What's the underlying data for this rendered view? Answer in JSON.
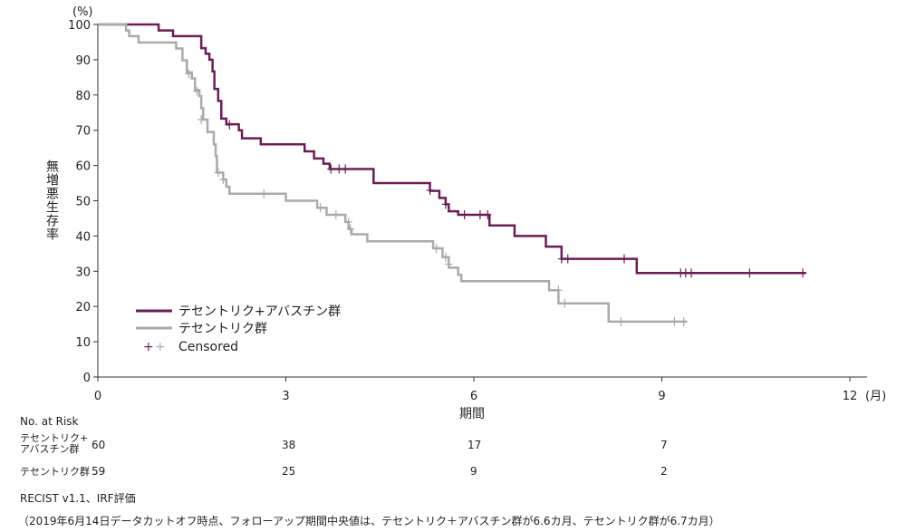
{
  "chart_data": {
    "type": "line",
    "subtype": "kaplan-meier",
    "ylabel": "無増悪生存率",
    "y_unit": "(%)",
    "xlabel": "期間",
    "x_unit": "(月)",
    "xlim": [
      0,
      12
    ],
    "ylim": [
      0,
      100
    ],
    "x_ticks": [
      0,
      3,
      6,
      9,
      12
    ],
    "y_ticks": [
      0,
      10,
      20,
      30,
      40,
      50,
      60,
      70,
      80,
      90,
      100
    ],
    "legend_position": "bottom-left",
    "colors": {
      "combo": "#6b1e55",
      "mono": "#aaaaaa"
    },
    "series": [
      {
        "name": "テセントリク+アバスチン群",
        "color": "#6b1e55",
        "steps": [
          [
            0,
            100
          ],
          [
            0.97,
            98.3
          ],
          [
            1.2,
            96.7
          ],
          [
            1.65,
            93.3
          ],
          [
            1.72,
            91.7
          ],
          [
            1.78,
            90
          ],
          [
            1.83,
            86.7
          ],
          [
            1.86,
            81.7
          ],
          [
            1.92,
            78.3
          ],
          [
            1.97,
            73.3
          ],
          [
            2.05,
            71.7
          ],
          [
            2.25,
            70
          ],
          [
            2.3,
            67.7
          ],
          [
            2.6,
            66
          ],
          [
            3.3,
            64
          ],
          [
            3.45,
            62
          ],
          [
            3.6,
            60.5
          ],
          [
            3.7,
            59
          ],
          [
            4.4,
            55
          ],
          [
            5.3,
            52.8
          ],
          [
            5.45,
            50.8
          ],
          [
            5.55,
            49
          ],
          [
            5.6,
            47
          ],
          [
            5.75,
            46
          ],
          [
            6.25,
            43
          ],
          [
            6.65,
            40
          ],
          [
            7.15,
            37
          ],
          [
            7.4,
            33.5
          ],
          [
            8.6,
            29.5
          ],
          [
            11.3,
            29.5
          ]
        ],
        "censored": [
          [
            2.1,
            71.5
          ],
          [
            3.72,
            59
          ],
          [
            3.85,
            59
          ],
          [
            3.95,
            59
          ],
          [
            5.3,
            53
          ],
          [
            5.55,
            49
          ],
          [
            5.85,
            46
          ],
          [
            6.1,
            46
          ],
          [
            6.22,
            46
          ],
          [
            7.4,
            33.5
          ],
          [
            7.5,
            33.5
          ],
          [
            8.4,
            33.5
          ],
          [
            9.3,
            29.5
          ],
          [
            9.38,
            29.5
          ],
          [
            9.47,
            29.5
          ],
          [
            10.4,
            29.5
          ],
          [
            11.25,
            29.5
          ]
        ]
      },
      {
        "name": "テセントリク群",
        "color": "#aaaaaa",
        "steps": [
          [
            0,
            100
          ],
          [
            0.45,
            98.3
          ],
          [
            0.5,
            96.7
          ],
          [
            0.65,
            94.9
          ],
          [
            1.25,
            93.2
          ],
          [
            1.35,
            89.8
          ],
          [
            1.42,
            86.4
          ],
          [
            1.5,
            84.7
          ],
          [
            1.55,
            81.4
          ],
          [
            1.62,
            79.7
          ],
          [
            1.65,
            76.3
          ],
          [
            1.68,
            73
          ],
          [
            1.75,
            69.5
          ],
          [
            1.85,
            66
          ],
          [
            1.88,
            62.7
          ],
          [
            1.9,
            58
          ],
          [
            2.0,
            56
          ],
          [
            2.05,
            54
          ],
          [
            2.1,
            52
          ],
          [
            3.0,
            50
          ],
          [
            3.5,
            48
          ],
          [
            3.65,
            46
          ],
          [
            3.95,
            44
          ],
          [
            4.0,
            42
          ],
          [
            4.05,
            40.5
          ],
          [
            4.3,
            38.5
          ],
          [
            5.35,
            36.5
          ],
          [
            5.5,
            34
          ],
          [
            5.6,
            31
          ],
          [
            5.75,
            29
          ],
          [
            5.8,
            27.2
          ],
          [
            7.2,
            24.6
          ],
          [
            7.35,
            20.9
          ],
          [
            8.15,
            15.7
          ],
          [
            9.4,
            15.7
          ]
        ],
        "censored": [
          [
            1.45,
            86
          ],
          [
            1.58,
            81
          ],
          [
            1.65,
            73
          ],
          [
            1.92,
            58
          ],
          [
            2.0,
            56
          ],
          [
            2.65,
            52
          ],
          [
            3.55,
            48
          ],
          [
            3.8,
            46
          ],
          [
            4.0,
            44
          ],
          [
            4.03,
            42
          ],
          [
            5.4,
            36.5
          ],
          [
            5.55,
            34
          ],
          [
            5.6,
            32
          ],
          [
            7.35,
            24.6
          ],
          [
            7.45,
            20.9
          ],
          [
            8.35,
            15.7
          ],
          [
            9.2,
            15.7
          ],
          [
            9.35,
            15.7
          ]
        ]
      }
    ],
    "risk_table": {
      "header": "No. at Risk",
      "times": [
        0,
        3,
        6,
        9
      ],
      "rows": [
        {
          "label": "テセントリク+\nアバスチン群",
          "values": [
            "60",
            "38",
            "17",
            "7"
          ]
        },
        {
          "label": "テセントリク群",
          "values": [
            "59",
            "25",
            "9",
            "2"
          ]
        }
      ]
    },
    "legend_censored": "Censored"
  },
  "footnotes": {
    "method": "RECIST v1.1、IRF評価",
    "note": "（2019年6月14日データカットオフ時点、フォローアップ期間中央値は、テセントリク＋アバスチン群が6.6カ月、テセントリク群が6.7カ月）"
  }
}
